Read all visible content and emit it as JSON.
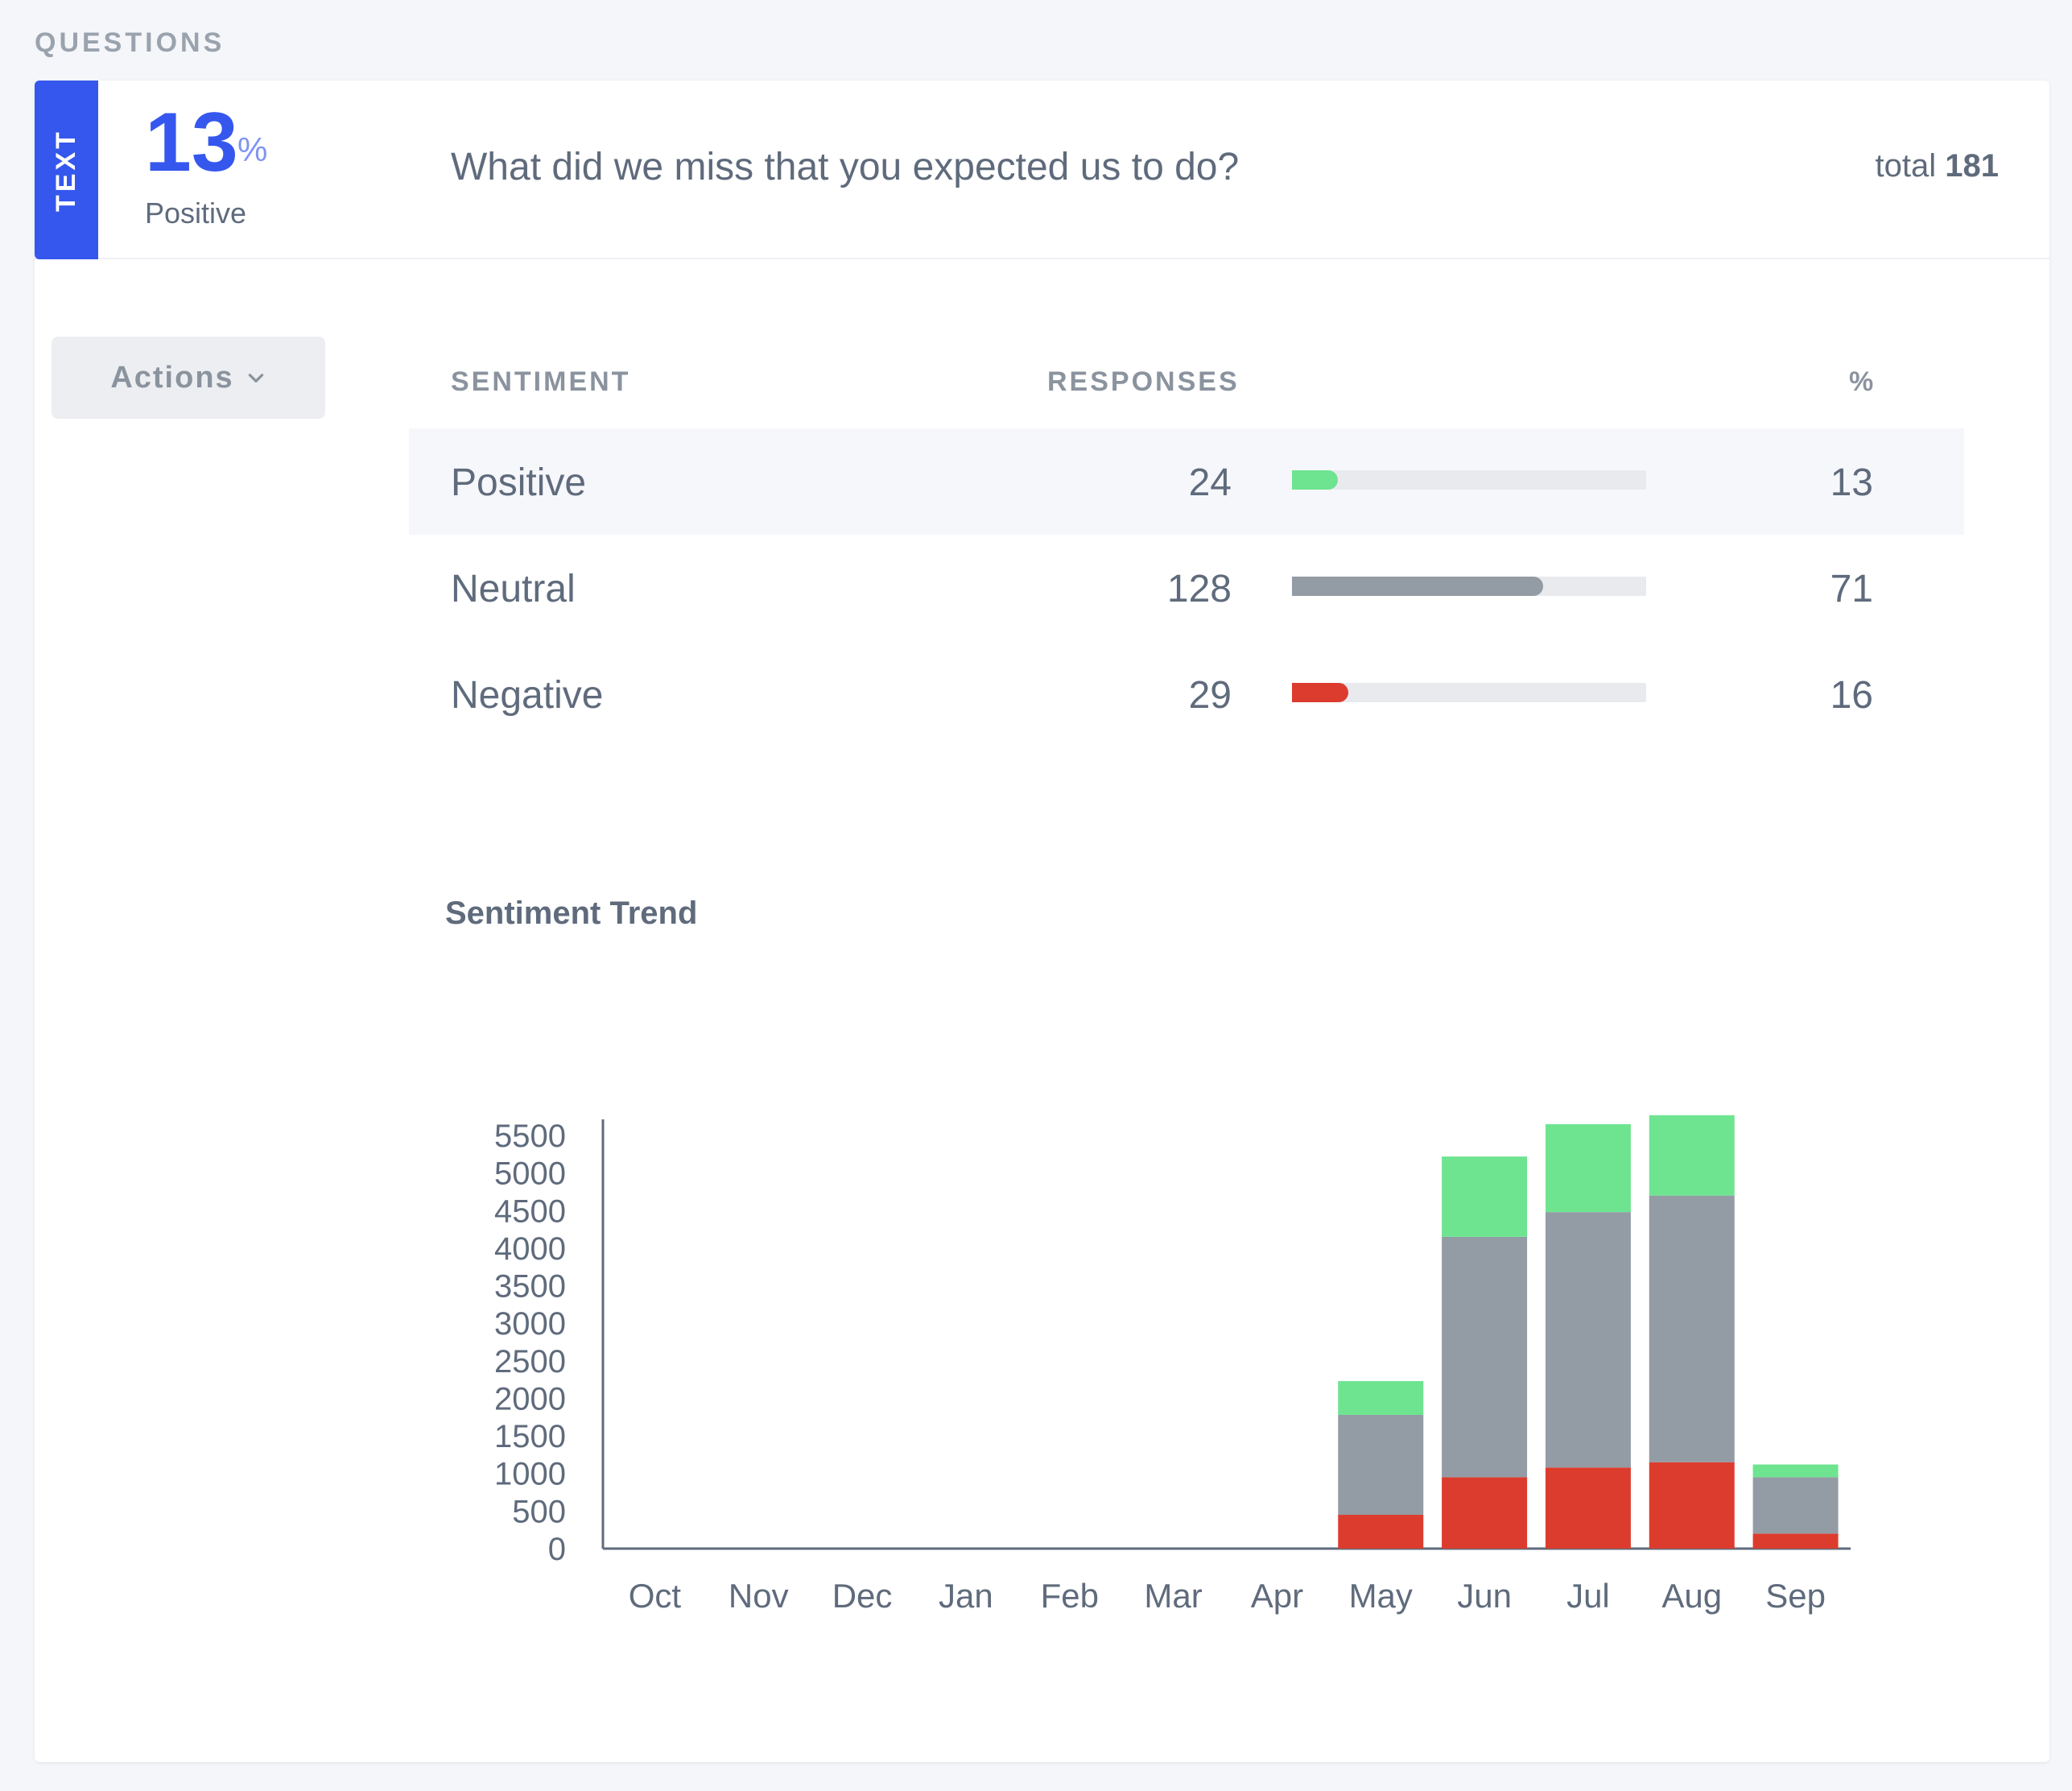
{
  "section_label": "QUESTIONS",
  "question": {
    "type_label": "TEXT",
    "kpi_value": "13",
    "kpi_unit": "%",
    "kpi_label": "Positive",
    "text": "What did we miss that you expected us to do?",
    "total_label": "total",
    "total_value": "181"
  },
  "actions": {
    "label": "Actions",
    "icon": "chevron-down-icon"
  },
  "table": {
    "headers": {
      "sentiment": "SENTIMENT",
      "responses": "RESPONSES",
      "percent": "%"
    },
    "rows": [
      {
        "sentiment": "Positive",
        "responses": "24",
        "percent": "13",
        "fraction": 0.13,
        "color": "#6ee491"
      },
      {
        "sentiment": "Neutral",
        "responses": "128",
        "percent": "71",
        "fraction": 0.71,
        "color": "#939ca5"
      },
      {
        "sentiment": "Negative",
        "responses": "29",
        "percent": "16",
        "fraction": 0.16,
        "color": "#dc3c2e"
      }
    ]
  },
  "chart_title": "Sentiment Trend",
  "chart_data": {
    "type": "bar",
    "stacked": true,
    "title": "Sentiment Trend",
    "categories": [
      "Oct",
      "Nov",
      "Dec",
      "Jan",
      "Feb",
      "Mar",
      "Apr",
      "May",
      "Jun",
      "Jul",
      "Aug",
      "Sep"
    ],
    "series": [
      {
        "values": [
          0,
          0,
          0,
          0,
          0,
          0,
          0,
          450,
          950,
          1080,
          1150,
          200
        ],
        "color": "#dc3c2e"
      },
      {
        "values": [
          0,
          0,
          0,
          0,
          0,
          0,
          0,
          1330,
          3200,
          3400,
          3550,
          750
        ],
        "color": "#939ca5"
      },
      {
        "values": [
          0,
          0,
          0,
          0,
          0,
          0,
          0,
          450,
          1070,
          1170,
          1070,
          170
        ],
        "color": "#6ee491"
      }
    ],
    "y_ticks": [
      "0",
      "500",
      "1000",
      "1500",
      "2000",
      "2500",
      "3000",
      "3500",
      "4000",
      "4500",
      "5000",
      "5500"
    ],
    "ylim": [
      0,
      5500
    ],
    "grid": false,
    "legend": "none"
  }
}
